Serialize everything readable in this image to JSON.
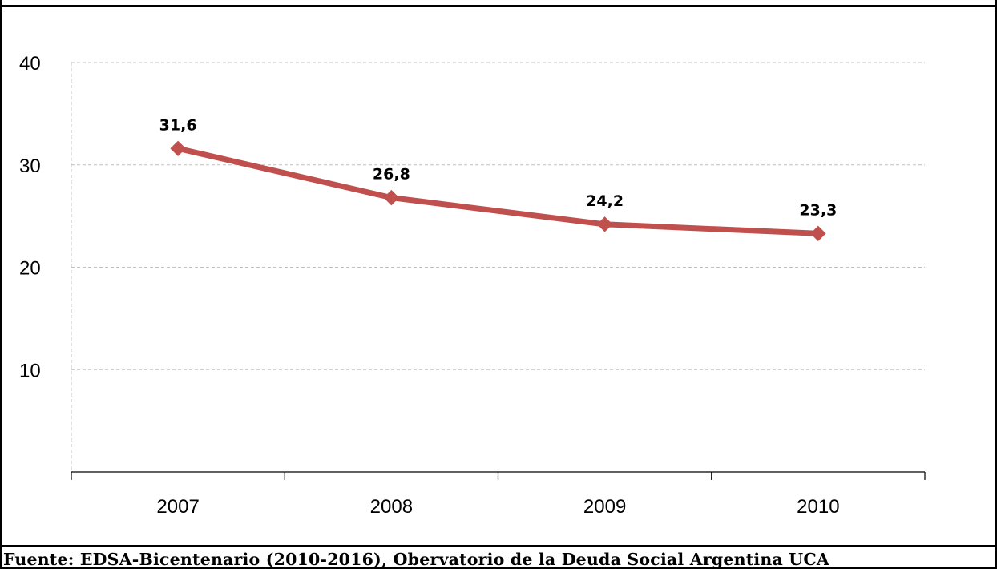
{
  "header": {
    "caption": ""
  },
  "chart_data": {
    "type": "line",
    "categories": [
      "2007",
      "2008",
      "2009",
      "2010"
    ],
    "series": [
      {
        "values": [
          31.6,
          26.8,
          24.2,
          23.3
        ],
        "labels": [
          "31,6",
          "26,8",
          "24,2",
          "23,3"
        ]
      }
    ],
    "yticks": [
      "40",
      "30",
      "20",
      "10"
    ],
    "ytick_values": [
      40,
      30,
      20,
      10
    ],
    "ylim": [
      0,
      40
    ],
    "grid": true,
    "legend": "none",
    "line_color": "#C0504D",
    "grid_color": "#BFBFBF"
  },
  "footer": {
    "source": "Fuente: EDSA-Bicentenario (2010-2016), Obervatorio de la Deuda Social Argentina UCA"
  }
}
